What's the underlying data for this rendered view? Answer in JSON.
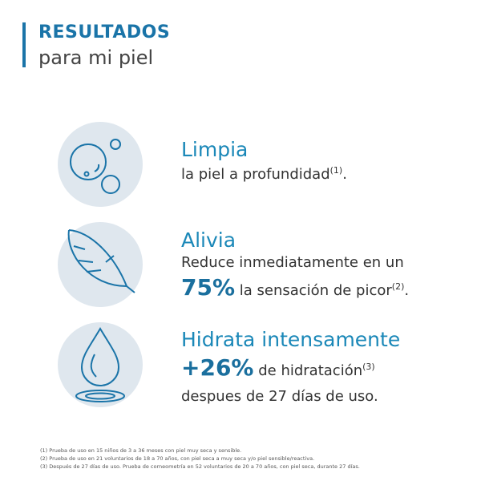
{
  "header": {
    "title": "RESULTADOS",
    "subtitle": "para mi piel"
  },
  "items": [
    {
      "heading": "Limpia",
      "text": "la piel a profundidad",
      "sup": "(1)",
      "tail": "."
    },
    {
      "heading": "Alivia",
      "line1": "Reduce inmediatamente en un",
      "highlight": "75%",
      "text": "la sensación de picor",
      "sup": "(2)",
      "tail": "."
    },
    {
      "heading": "Hidrata intensamente",
      "highlight": "+26%",
      "text": "de hidratación",
      "sup": "(3)",
      "line2": "despues de 27 días de uso."
    }
  ],
  "footnotes": [
    "(1) Prueba de uso en 15 niños de 3 a 36 meses con piel muy seca y sensible.",
    "(2) Prueba de uso en 21 voluntarios de 18 a 70 años, con piel seca a muy seca y/o piel sensible/reactiva.",
    "(3) Después de 27 días de uso. Prueba de corneometría en 52 voluntarios de 20 a 70 años, con piel seca, durante 27 días."
  ]
}
